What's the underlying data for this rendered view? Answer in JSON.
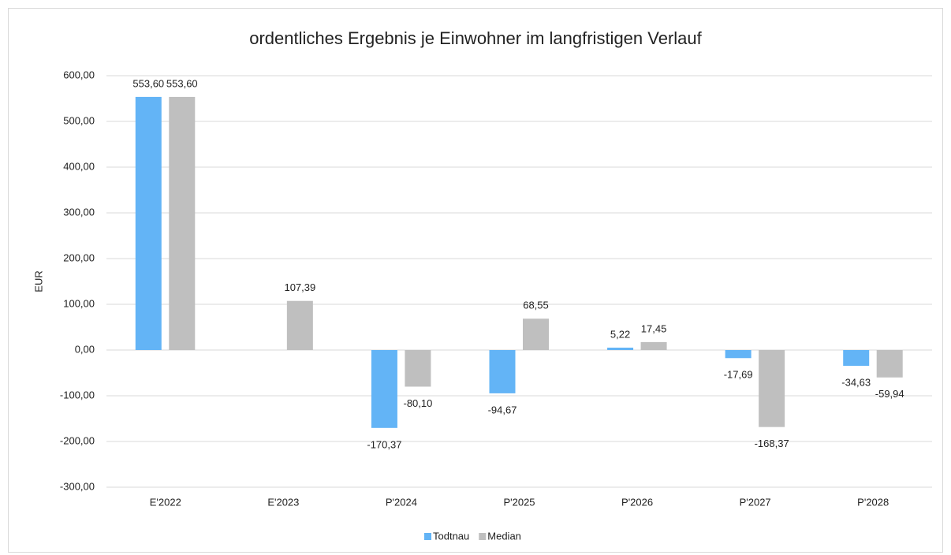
{
  "chart_data": {
    "type": "bar",
    "title": "ordentliches Ergebnis je Einwohner im langfristigen Verlauf",
    "y_label": "EUR",
    "categories": [
      "E'2022",
      "E'2023",
      "P'2024",
      "P'2025",
      "P'2026",
      "P'2027",
      "P'2028"
    ],
    "series": [
      {
        "name": "Todtnau",
        "color": "#63b4f6",
        "values": [
          553.6,
          null,
          -170.37,
          -94.67,
          5.22,
          -17.69,
          -34.63
        ],
        "value_labels": [
          "553,60",
          null,
          "-170,37",
          "-94,67",
          "5,22",
          "-17,69",
          "-34,63"
        ]
      },
      {
        "name": "Median",
        "color": "#bfbfbf",
        "values": [
          553.6,
          107.39,
          -80.1,
          68.55,
          17.45,
          -168.37,
          -59.94
        ],
        "value_labels": [
          "553,60",
          "107,39",
          "-80,10",
          "68,55",
          "17,45",
          "-168,37",
          "-59,94"
        ]
      }
    ],
    "ylim": [
      -300,
      600
    ],
    "yticks": [
      {
        "value": -300,
        "label": "-300,00"
      },
      {
        "value": -200,
        "label": "-200,00"
      },
      {
        "value": -100,
        "label": "-100,00"
      },
      {
        "value": 0,
        "label": "0,00"
      },
      {
        "value": 100,
        "label": "100,00"
      },
      {
        "value": 200,
        "label": "200,00"
      },
      {
        "value": 300,
        "label": "300,00"
      },
      {
        "value": 400,
        "label": "400,00"
      },
      {
        "value": 500,
        "label": "500,00"
      },
      {
        "value": 600,
        "label": "600,00"
      }
    ],
    "grid": true,
    "legend": "bottom"
  }
}
